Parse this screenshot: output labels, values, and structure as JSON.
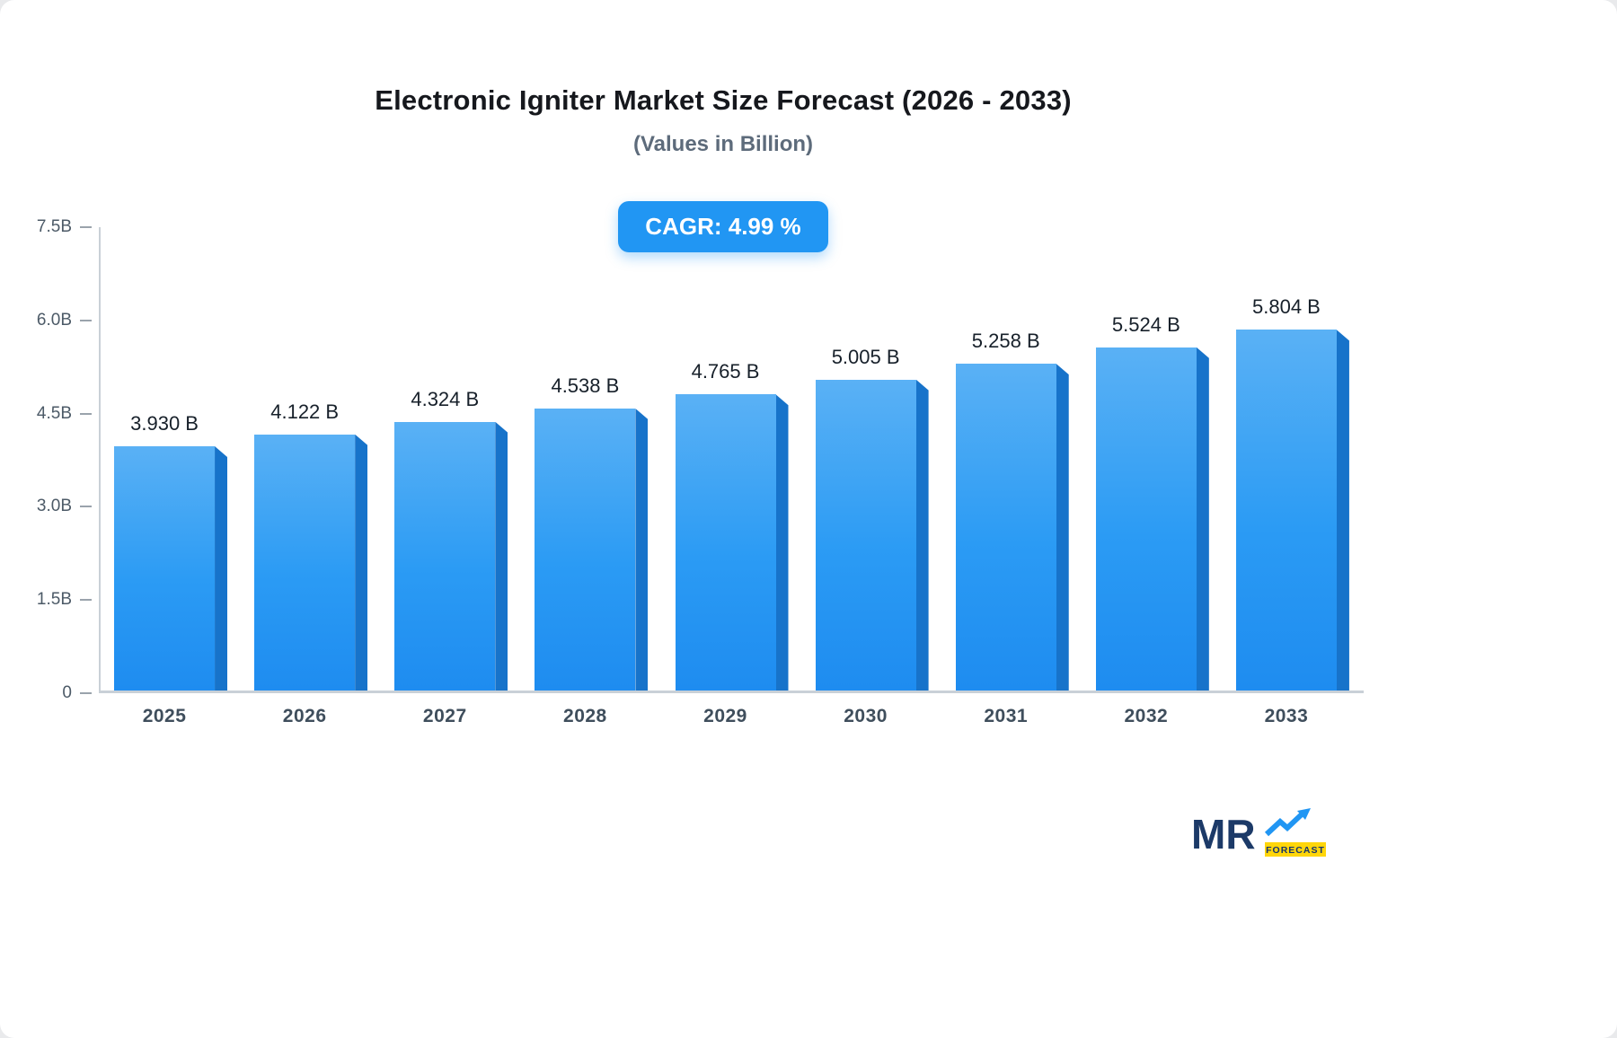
{
  "title": "Electronic Igniter Market Size Forecast (2026 - 2033)",
  "subtitle": "(Values in Billion)",
  "badge": "CAGR: 4.99 %",
  "logo": {
    "text": "MR",
    "sub": "FORECAST"
  },
  "colors": {
    "accent": "#2196f3",
    "bar_front_top": "#5ab1f5",
    "bar_front_bottom": "#1e8cf0",
    "bar_side": "#1773ca",
    "badge_bg": "#2196f3",
    "logo_navy": "#1c3a68",
    "logo_yellow": "#ffd60a"
  },
  "chart_data": {
    "type": "bar",
    "title": "Electronic Igniter Market Size Forecast (2026 - 2033)",
    "subtitle": "(Values in Billion)",
    "cagr": "4.99 %",
    "categories": [
      "2025",
      "2026",
      "2027",
      "2028",
      "2029",
      "2030",
      "2031",
      "2032",
      "2033"
    ],
    "values": [
      3.93,
      4.122,
      4.324,
      4.538,
      4.765,
      5.005,
      5.258,
      5.524,
      5.804
    ],
    "labels": [
      "3.930 B",
      "4.122 B",
      "4.324 B",
      "4.538 B",
      "4.765 B",
      "5.005 B",
      "5.258 B",
      "5.524 B",
      "5.804 B"
    ],
    "xlabel": "",
    "ylabel": "",
    "ylim": [
      0,
      7.5
    ],
    "yticks": [
      0,
      1.5,
      3.0,
      4.5,
      6.0,
      7.5
    ],
    "ytick_labels": [
      "0",
      "1.5B",
      "3.0B",
      "4.5B",
      "6.0B",
      "7.5B"
    ],
    "grid": false,
    "legend": false
  }
}
